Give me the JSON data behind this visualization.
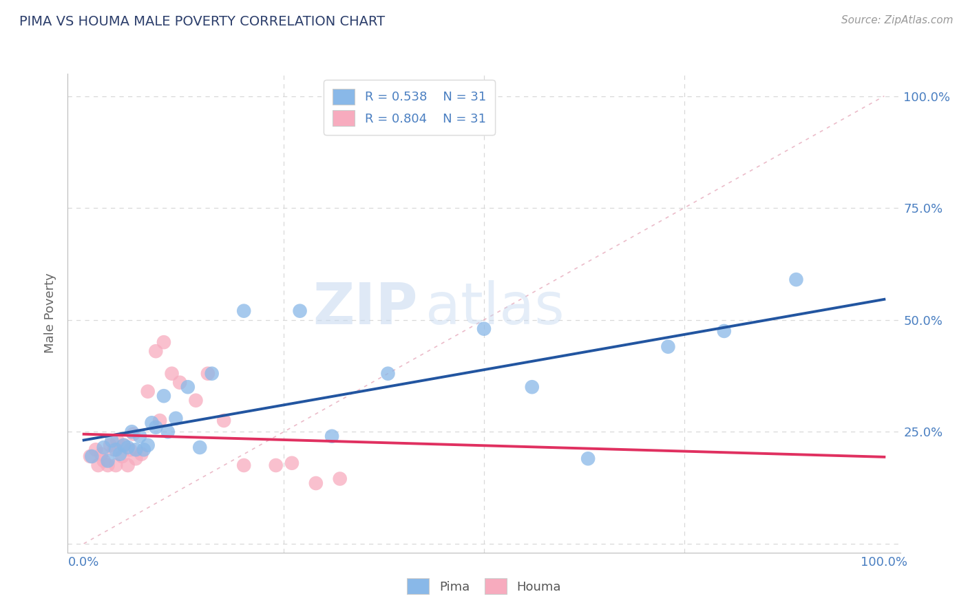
{
  "title": "PIMA VS HOUMA MALE POVERTY CORRELATION CHART",
  "source_text": "Source: ZipAtlas.com",
  "ylabel": "Male Poverty",
  "xlim": [
    -0.02,
    1.02
  ],
  "ylim": [
    -0.02,
    1.05
  ],
  "xticks": [
    0.0,
    0.25,
    0.5,
    0.75,
    1.0
  ],
  "yticks": [
    0.0,
    0.25,
    0.5,
    0.75,
    1.0
  ],
  "xtick_labels": [
    "0.0%",
    "",
    "",
    "",
    "100.0%"
  ],
  "ytick_labels": [
    "",
    "25.0%",
    "50.0%",
    "75.0%",
    "100.0%"
  ],
  "pima_color": "#89b8e8",
  "houma_color": "#f7abbe",
  "pima_line_color": "#2255a0",
  "houma_line_color": "#e03060",
  "diag_line_color": "#e8b0c0",
  "R_pima": 0.538,
  "N_pima": 31,
  "R_houma": 0.804,
  "N_houma": 31,
  "background_color": "#ffffff",
  "grid_color": "#d8d8d8",
  "title_color": "#2c3e6b",
  "axis_label_color": "#666666",
  "tick_label_color": "#4a7fc1",
  "watermark_zip": "ZIP",
  "watermark_atlas": "atlas",
  "pima_x": [
    0.01,
    0.025,
    0.03,
    0.035,
    0.04,
    0.045,
    0.05,
    0.055,
    0.06,
    0.065,
    0.07,
    0.075,
    0.08,
    0.085,
    0.09,
    0.1,
    0.105,
    0.115,
    0.13,
    0.145,
    0.16,
    0.2,
    0.27,
    0.31,
    0.38,
    0.5,
    0.56,
    0.63,
    0.73,
    0.8,
    0.89
  ],
  "pima_y": [
    0.195,
    0.215,
    0.185,
    0.23,
    0.21,
    0.2,
    0.22,
    0.215,
    0.25,
    0.21,
    0.24,
    0.21,
    0.22,
    0.27,
    0.26,
    0.33,
    0.25,
    0.28,
    0.35,
    0.215,
    0.38,
    0.52,
    0.52,
    0.24,
    0.38,
    0.48,
    0.35,
    0.19,
    0.44,
    0.475,
    0.59
  ],
  "houma_x": [
    0.008,
    0.015,
    0.018,
    0.022,
    0.025,
    0.03,
    0.033,
    0.038,
    0.04,
    0.042,
    0.048,
    0.05,
    0.055,
    0.058,
    0.062,
    0.065,
    0.072,
    0.08,
    0.09,
    0.095,
    0.1,
    0.11,
    0.12,
    0.14,
    0.155,
    0.175,
    0.2,
    0.24,
    0.26,
    0.29,
    0.32
  ],
  "houma_y": [
    0.195,
    0.21,
    0.175,
    0.2,
    0.185,
    0.175,
    0.22,
    0.21,
    0.175,
    0.23,
    0.195,
    0.22,
    0.175,
    0.21,
    0.245,
    0.19,
    0.2,
    0.34,
    0.43,
    0.275,
    0.45,
    0.38,
    0.36,
    0.32,
    0.38,
    0.275,
    0.175,
    0.175,
    0.18,
    0.135,
    0.145
  ]
}
